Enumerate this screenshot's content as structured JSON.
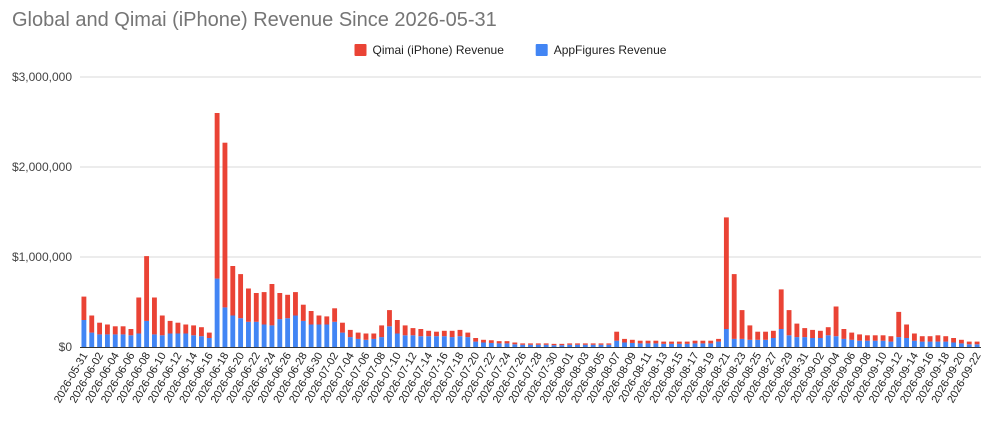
{
  "chart_data": {
    "type": "bar",
    "stacked": true,
    "title": "Global and Qimai (iPhone) Revenue Since 2026-05-31",
    "xlabel": "",
    "ylabel": "",
    "ylim": [
      0,
      3000000
    ],
    "yticks": [
      {
        "value": 0,
        "label": "$0"
      },
      {
        "value": 1000000,
        "label": "$1,000,000"
      },
      {
        "value": 2000000,
        "label": "$2,000,000"
      },
      {
        "value": 3000000,
        "label": "$3,000,000"
      }
    ],
    "grid": true,
    "legend": "top-center",
    "legend_order": [
      1,
      0
    ],
    "start_date": "2026-05-31",
    "label_every": 2,
    "series": [
      {
        "name": "AppFigures Revenue",
        "color": "#4285f4",
        "values": [
          300000,
          160000,
          140000,
          140000,
          140000,
          140000,
          130000,
          150000,
          290000,
          140000,
          130000,
          150000,
          150000,
          150000,
          130000,
          120000,
          100000,
          760000,
          440000,
          350000,
          320000,
          280000,
          280000,
          250000,
          240000,
          310000,
          320000,
          350000,
          290000,
          250000,
          250000,
          250000,
          280000,
          160000,
          110000,
          90000,
          80000,
          90000,
          110000,
          230000,
          150000,
          130000,
          130000,
          120000,
          120000,
          120000,
          120000,
          110000,
          120000,
          110000,
          60000,
          50000,
          45000,
          40000,
          40000,
          30000,
          25000,
          25000,
          25000,
          25000,
          20000,
          20000,
          25000,
          25000,
          25000,
          25000,
          25000,
          25000,
          70000,
          50000,
          45000,
          40000,
          40000,
          40000,
          35000,
          35000,
          35000,
          35000,
          40000,
          40000,
          40000,
          60000,
          200000,
          90000,
          90000,
          80000,
          80000,
          80000,
          100000,
          200000,
          130000,
          110000,
          110000,
          100000,
          100000,
          130000,
          120000,
          90000,
          80000,
          70000,
          70000,
          70000,
          70000,
          60000,
          110000,
          100000,
          70000,
          60000,
          60000,
          60000,
          60000,
          50000,
          40000,
          30000,
          30000
        ]
      },
      {
        "name": "Qimai (iPhone) Revenue",
        "color": "#ea4335",
        "values": [
          260000,
          190000,
          130000,
          110000,
          90000,
          90000,
          70000,
          400000,
          720000,
          410000,
          220000,
          140000,
          120000,
          100000,
          110000,
          100000,
          60000,
          1840000,
          1830000,
          550000,
          490000,
          370000,
          320000,
          360000,
          460000,
          290000,
          260000,
          260000,
          180000,
          150000,
          100000,
          90000,
          150000,
          110000,
          80000,
          70000,
          70000,
          60000,
          130000,
          180000,
          150000,
          110000,
          80000,
          80000,
          60000,
          50000,
          60000,
          70000,
          70000,
          50000,
          40000,
          30000,
          30000,
          25000,
          25000,
          20000,
          15000,
          15000,
          15000,
          15000,
          15000,
          15000,
          15000,
          15000,
          15000,
          15000,
          15000,
          15000,
          100000,
          40000,
          35000,
          30000,
          30000,
          30000,
          25000,
          25000,
          25000,
          25000,
          30000,
          30000,
          30000,
          30000,
          1240000,
          720000,
          320000,
          160000,
          90000,
          90000,
          80000,
          440000,
          280000,
          150000,
          100000,
          90000,
          80000,
          90000,
          330000,
          110000,
          80000,
          70000,
          60000,
          60000,
          60000,
          60000,
          280000,
          150000,
          80000,
          60000,
          60000,
          70000,
          60000,
          50000,
          40000,
          30000,
          30000
        ]
      }
    ]
  }
}
